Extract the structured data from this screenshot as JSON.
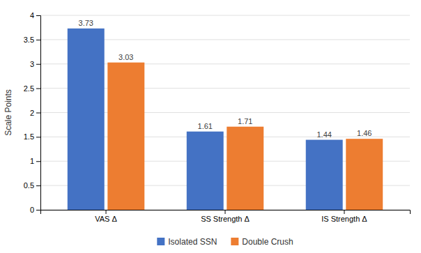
{
  "chart_data": {
    "type": "bar",
    "categories": [
      "VAS Δ",
      "SS Strength Δ",
      "IS Strength Δ"
    ],
    "series": [
      {
        "name": "Isolated SSN",
        "color": "#4472C4",
        "values": [
          3.73,
          1.61,
          1.44
        ]
      },
      {
        "name": "Double Crush",
        "color": "#ED7D31",
        "values": [
          3.03,
          1.71,
          1.46
        ]
      }
    ],
    "ylabel": "Scale Points",
    "ylim": [
      0,
      4
    ],
    "yticks": [
      0,
      0.5,
      1,
      1.5,
      2,
      2.5,
      3,
      3.5,
      4
    ],
    "grid": true,
    "legend": "bottom",
    "data_labels": true
  }
}
